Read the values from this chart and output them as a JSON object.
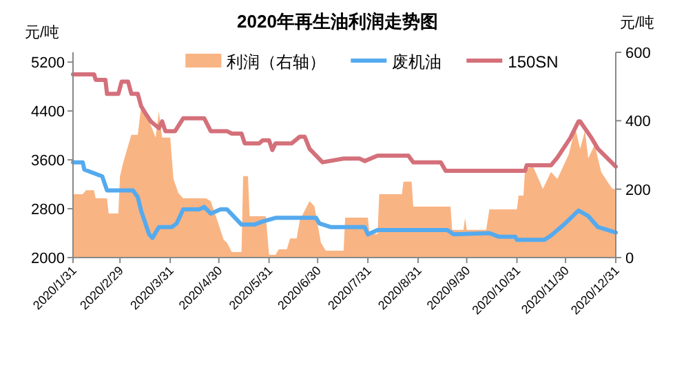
{
  "chart_data": {
    "type": "line",
    "title": "2020年再生油利润走势图",
    "ylabel": "元/吨",
    "y2label": "元/吨",
    "legend": "top",
    "grid": false,
    "marker": "none",
    "line_style": "solid",
    "xlim": [
      "2020-01-31",
      "2020-12-31"
    ],
    "xticks": [
      {
        "value": "2020-01-31",
        "label": "2020/1/31"
      },
      {
        "value": "2020-02-29",
        "label": "2020/2/29"
      },
      {
        "value": "2020-03-31",
        "label": "2020/3/31"
      },
      {
        "value": "2020-04-30",
        "label": "2020/4/30"
      },
      {
        "value": "2020-05-31",
        "label": "2020/5/31"
      },
      {
        "value": "2020-06-30",
        "label": "2020/6/30"
      },
      {
        "value": "2020-07-31",
        "label": "2020/7/31"
      },
      {
        "value": "2020-08-31",
        "label": "2020/8/31"
      },
      {
        "value": "2020-09-30",
        "label": "2020/9/30"
      },
      {
        "value": "2020-10-31",
        "label": "2020/10/31"
      },
      {
        "value": "2020-11-30",
        "label": "2020/11/30"
      },
      {
        "value": "2020-12-31",
        "label": "2020/12/31"
      }
    ],
    "ylim": [
      2000,
      5360
    ],
    "yticks": [
      2000,
      2800,
      3600,
      4400,
      5200
    ],
    "y2lim": [
      0,
      600
    ],
    "y2ticks": [
      0,
      200,
      400,
      600
    ],
    "series": [
      {
        "name": "利润（右轴）",
        "type": "area",
        "axis": "y2",
        "color": "#f9b483",
        "x": [
          "2020-01-31",
          "2020-02-06",
          "2020-02-08",
          "2020-02-13",
          "2020-02-14",
          "2020-02-21",
          "2020-02-22",
          "2020-02-28",
          "2020-02-29",
          "2020-03-02",
          "2020-03-07",
          "2020-03-11",
          "2020-03-13",
          "2020-03-18",
          "2020-03-22",
          "2020-03-24",
          "2020-03-26",
          "2020-03-31",
          "2020-04-02",
          "2020-04-05",
          "2020-04-08",
          "2020-04-22",
          "2020-04-25",
          "2020-04-29",
          "2020-05-03",
          "2020-05-05",
          "2020-05-08",
          "2020-05-14",
          "2020-05-15",
          "2020-05-18",
          "2020-05-19",
          "2020-05-29",
          "2020-05-31",
          "2020-06-04",
          "2020-06-06",
          "2020-06-11",
          "2020-06-13",
          "2020-06-17",
          "2020-06-19",
          "2020-06-25",
          "2020-06-28",
          "2020-07-02",
          "2020-07-05",
          "2020-07-16",
          "2020-07-17",
          "2020-07-31",
          "2020-08-01",
          "2020-08-06",
          "2020-08-07",
          "2020-08-21",
          "2020-08-22",
          "2020-08-27",
          "2020-08-28",
          "2020-09-20",
          "2020-09-21",
          "2020-09-28",
          "2020-09-29",
          "2020-09-30",
          "2020-10-12",
          "2020-10-14",
          "2020-10-31",
          "2020-11-01",
          "2020-11-04",
          "2020-11-05",
          "2020-11-10",
          "2020-11-16",
          "2020-11-21",
          "2020-11-25",
          "2020-12-02",
          "2020-12-06",
          "2020-12-09",
          "2020-12-12",
          "2020-12-14",
          "2020-12-18",
          "2020-12-22",
          "2020-12-26",
          "2020-12-29",
          "2020-12-31"
        ],
        "values": [
          185,
          185,
          197,
          197,
          173,
          173,
          129,
          129,
          238,
          278,
          359,
          359,
          439,
          399,
          351,
          427,
          351,
          351,
          230,
          189,
          173,
          173,
          165,
          109,
          52,
          44,
          16,
          16,
          238,
          238,
          121,
          121,
          8,
          8,
          24,
          24,
          56,
          56,
          109,
          165,
          150,
          44,
          20,
          20,
          117,
          117,
          69,
          69,
          185,
          185,
          222,
          222,
          149,
          149,
          81,
          81,
          117,
          81,
          81,
          141,
          141,
          181,
          181,
          258,
          266,
          201,
          250,
          230,
          302,
          379,
          318,
          371,
          290,
          330,
          250,
          221,
          201,
          201
        ]
      },
      {
        "name": "废机油",
        "color": "#55aaee",
        "x": [
          "2020-01-31",
          "2020-02-06",
          "2020-02-07",
          "2020-02-18",
          "2020-02-21",
          "2020-03-08",
          "2020-03-11",
          "2020-03-13",
          "2020-03-18",
          "2020-03-20",
          "2020-03-24",
          "2020-04-01",
          "2020-04-04",
          "2020-04-08",
          "2020-04-18",
          "2020-04-21",
          "2020-04-25",
          "2020-05-01",
          "2020-05-05",
          "2020-05-14",
          "2020-05-22",
          "2020-05-27",
          "2020-06-04",
          "2020-06-29",
          "2020-07-01",
          "2020-07-08",
          "2020-07-29",
          "2020-07-31",
          "2020-08-06",
          "2020-09-18",
          "2020-09-22",
          "2020-10-14",
          "2020-10-20",
          "2020-10-30",
          "2020-10-31",
          "2020-11-17",
          "2020-11-21",
          "2020-11-29",
          "2020-12-08",
          "2020-12-14",
          "2020-12-20",
          "2020-12-31"
        ],
        "values": [
          3560,
          3560,
          3440,
          3330,
          3100,
          3100,
          2990,
          2770,
          2380,
          2320,
          2500,
          2500,
          2560,
          2790,
          2790,
          2830,
          2720,
          2790,
          2790,
          2540,
          2540,
          2590,
          2650,
          2650,
          2560,
          2500,
          2500,
          2380,
          2450,
          2450,
          2380,
          2400,
          2340,
          2340,
          2290,
          2290,
          2360,
          2540,
          2770,
          2680,
          2500,
          2410
        ]
      },
      {
        "name": "150SN",
        "color": "#d4707a",
        "x": [
          "2020-01-31",
          "2020-02-13",
          "2020-02-14",
          "2020-02-20",
          "2020-02-21",
          "2020-02-28",
          "2020-03-01",
          "2020-03-05",
          "2020-03-07",
          "2020-03-11",
          "2020-03-13",
          "2020-03-16",
          "2020-03-19",
          "2020-03-24",
          "2020-03-26",
          "2020-03-28",
          "2020-04-03",
          "2020-04-08",
          "2020-04-21",
          "2020-04-25",
          "2020-05-05",
          "2020-05-08",
          "2020-05-14",
          "2020-05-16",
          "2020-05-25",
          "2020-05-27",
          "2020-05-31",
          "2020-06-02",
          "2020-06-04",
          "2020-06-14",
          "2020-06-19",
          "2020-06-22",
          "2020-06-25",
          "2020-07-03",
          "2020-07-16",
          "2020-07-26",
          "2020-07-29",
          "2020-08-06",
          "2020-08-25",
          "2020-08-28",
          "2020-09-14",
          "2020-09-17",
          "2020-11-05",
          "2020-11-06",
          "2020-11-21",
          "2020-11-25",
          "2020-12-03",
          "2020-12-08",
          "2020-12-09",
          "2020-12-16",
          "2020-12-20",
          "2020-12-31"
        ],
        "values": [
          5000,
          5000,
          4910,
          4910,
          4680,
          4680,
          4880,
          4880,
          4680,
          4680,
          4480,
          4350,
          4230,
          4120,
          4230,
          4070,
          4070,
          4280,
          4280,
          4070,
          4070,
          4030,
          4030,
          3870,
          3870,
          3920,
          3920,
          3760,
          3870,
          3870,
          3980,
          3980,
          3780,
          3560,
          3620,
          3620,
          3580,
          3670,
          3670,
          3560,
          3560,
          3420,
          3420,
          3510,
          3510,
          3640,
          3960,
          4230,
          4230,
          3960,
          3780,
          3490
        ]
      }
    ]
  }
}
